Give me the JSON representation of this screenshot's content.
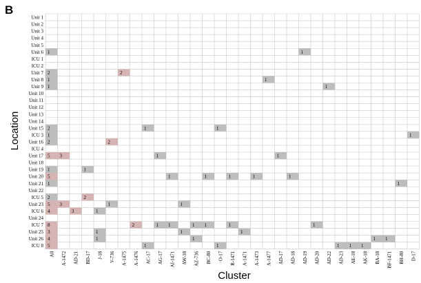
{
  "panel_label": "B",
  "colors": {
    "grid": "#c8c8c8",
    "cell_gray": "#bdbdbd",
    "cell_pink": "#d6b4b4",
    "text": "#000000"
  },
  "chart_data": {
    "type": "heatmap",
    "title": "",
    "xlabel": "Cluster",
    "ylabel": "Location",
    "grid": true,
    "rows": [
      "Unit 1",
      "Unit 2",
      "Unit 3",
      "Unit 4",
      "Unit 5",
      "Unit 6",
      "ICU 1",
      "ICU 2",
      "Unit 7",
      "Unit 8",
      "Unit 9",
      "Unit 10",
      "Unit 11",
      "Unit 12",
      "Unit 13",
      "Unit 14",
      "Unit 15",
      "ICU 3",
      "Unit 16",
      "ICU 4",
      "Unit 17",
      "Unit 18",
      "Unit 19",
      "Unit 20",
      "Unit 21",
      "Unit 22",
      "ICU 5",
      "Unit 23",
      "ICU 6",
      "Unit 24",
      "ICU 7",
      "Unit 25",
      "Unit 26",
      "ICU 8"
    ],
    "columns": [
      "All",
      "A-1472",
      "AD-21",
      "BD-17",
      "J-18",
      "V-736",
      "A-1475",
      "A-1476",
      "AC-17",
      "AG-17",
      "AI-1471",
      "AW-18",
      "AZ-736",
      "BC-80",
      "O-17",
      "R-1471",
      "A-1471",
      "A-1473",
      "A-1477",
      "AD-17",
      "AD-18",
      "AD-19",
      "AD-20",
      "AD-22",
      "AD-23",
      "AE-18",
      "AK-18",
      "BA-18",
      "BF-1471",
      "BH-80",
      "D-17"
    ],
    "cells": [
      {
        "row": "Unit 6",
        "col": "All",
        "value": 1,
        "highlight": "gray"
      },
      {
        "row": "Unit 6",
        "col": "AD-19",
        "value": 1,
        "highlight": "gray"
      },
      {
        "row": "Unit 7",
        "col": "All",
        "value": 2,
        "highlight": "gray"
      },
      {
        "row": "Unit 7",
        "col": "A-1475",
        "value": 2,
        "highlight": "pink"
      },
      {
        "row": "Unit 8",
        "col": "All",
        "value": 1,
        "highlight": "gray"
      },
      {
        "row": "Unit 8",
        "col": "A-1477",
        "value": 1,
        "highlight": "gray"
      },
      {
        "row": "Unit 9",
        "col": "All",
        "value": 1,
        "highlight": "gray"
      },
      {
        "row": "Unit 9",
        "col": "AD-22",
        "value": 1,
        "highlight": "gray"
      },
      {
        "row": "Unit 15",
        "col": "All",
        "value": 2,
        "highlight": "gray"
      },
      {
        "row": "Unit 15",
        "col": "AC-17",
        "value": 1,
        "highlight": "gray"
      },
      {
        "row": "Unit 15",
        "col": "O-17",
        "value": 1,
        "highlight": "gray"
      },
      {
        "row": "ICU 3",
        "col": "All",
        "value": 1,
        "highlight": "gray"
      },
      {
        "row": "ICU 3",
        "col": "D-17",
        "value": 1,
        "highlight": "gray"
      },
      {
        "row": "Unit 16",
        "col": "All",
        "value": 2,
        "highlight": "gray"
      },
      {
        "row": "Unit 16",
        "col": "V-736",
        "value": 2,
        "highlight": "pink"
      },
      {
        "row": "Unit 17",
        "col": "All",
        "value": 5,
        "highlight": "pink"
      },
      {
        "row": "Unit 17",
        "col": "A-1472",
        "value": 3,
        "highlight": "pink"
      },
      {
        "row": "Unit 17",
        "col": "AG-17",
        "value": 1,
        "highlight": "gray"
      },
      {
        "row": "Unit 17",
        "col": "AD-17",
        "value": 1,
        "highlight": "gray"
      },
      {
        "row": "Unit 19",
        "col": "All",
        "value": 1,
        "highlight": "gray"
      },
      {
        "row": "Unit 19",
        "col": "BD-17",
        "value": 1,
        "highlight": "gray"
      },
      {
        "row": "Unit 20",
        "col": "All",
        "value": 5,
        "highlight": "pink"
      },
      {
        "row": "Unit 20",
        "col": "AI-1471",
        "value": 1,
        "highlight": "gray"
      },
      {
        "row": "Unit 20",
        "col": "BC-80",
        "value": 1,
        "highlight": "gray"
      },
      {
        "row": "Unit 20",
        "col": "R-1471",
        "value": 1,
        "highlight": "gray"
      },
      {
        "row": "Unit 20",
        "col": "A-1473",
        "value": 1,
        "highlight": "gray"
      },
      {
        "row": "Unit 20",
        "col": "AD-18",
        "value": 1,
        "highlight": "gray"
      },
      {
        "row": "Unit 21",
        "col": "All",
        "value": 1,
        "highlight": "gray"
      },
      {
        "row": "Unit 21",
        "col": "BH-80",
        "value": 1,
        "highlight": "gray"
      },
      {
        "row": "ICU 5",
        "col": "All",
        "value": 2,
        "highlight": "gray"
      },
      {
        "row": "ICU 5",
        "col": "BD-17",
        "value": 2,
        "highlight": "pink"
      },
      {
        "row": "Unit 23",
        "col": "All",
        "value": 5,
        "highlight": "pink"
      },
      {
        "row": "Unit 23",
        "col": "A-1472",
        "value": 3,
        "highlight": "pink"
      },
      {
        "row": "Unit 23",
        "col": "V-736",
        "value": 1,
        "highlight": "gray"
      },
      {
        "row": "Unit 23",
        "col": "AW-18",
        "value": 1,
        "highlight": "gray"
      },
      {
        "row": "ICU 6",
        "col": "All",
        "value": 4,
        "highlight": "pink"
      },
      {
        "row": "ICU 6",
        "col": "AD-21",
        "value": 3,
        "highlight": "pink"
      },
      {
        "row": "ICU 6",
        "col": "J-18",
        "value": 1,
        "highlight": "gray"
      },
      {
        "row": "ICU 7",
        "col": "All",
        "value": 8,
        "highlight": "pink"
      },
      {
        "row": "ICU 7",
        "col": "A-1476",
        "value": 2,
        "highlight": "pink"
      },
      {
        "row": "ICU 7",
        "col": "AG-17",
        "value": 1,
        "highlight": "gray"
      },
      {
        "row": "ICU 7",
        "col": "AI-1471",
        "value": 1,
        "highlight": "gray"
      },
      {
        "row": "ICU 7",
        "col": "AZ-736",
        "value": 1,
        "highlight": "gray"
      },
      {
        "row": "ICU 7",
        "col": "BC-80",
        "value": 1,
        "highlight": "gray"
      },
      {
        "row": "ICU 7",
        "col": "R-1471",
        "value": 1,
        "highlight": "gray"
      },
      {
        "row": "ICU 7",
        "col": "AD-20",
        "value": 1,
        "highlight": "gray"
      },
      {
        "row": "Unit 25",
        "col": "All",
        "value": 3,
        "highlight": "pink"
      },
      {
        "row": "Unit 25",
        "col": "J-18",
        "value": 1,
        "highlight": "gray"
      },
      {
        "row": "Unit 25",
        "col": "AW-18",
        "value": 1,
        "highlight": "gray"
      },
      {
        "row": "Unit 25",
        "col": "A-1471",
        "value": 1,
        "highlight": "gray"
      },
      {
        "row": "Unit 26",
        "col": "All",
        "value": 4,
        "highlight": "pink"
      },
      {
        "row": "Unit 26",
        "col": "J-18",
        "value": 1,
        "highlight": "gray"
      },
      {
        "row": "Unit 26",
        "col": "AZ-736",
        "value": 1,
        "highlight": "gray"
      },
      {
        "row": "Unit 26",
        "col": "BA-18",
        "value": 1,
        "highlight": "gray"
      },
      {
        "row": "Unit 26",
        "col": "BF-1471",
        "value": 1,
        "highlight": "gray"
      },
      {
        "row": "ICU 8",
        "col": "All",
        "value": 5,
        "highlight": "pink"
      },
      {
        "row": "ICU 8",
        "col": "AC-17",
        "value": 1,
        "highlight": "gray"
      },
      {
        "row": "ICU 8",
        "col": "O-17",
        "value": 1,
        "highlight": "gray"
      },
      {
        "row": "ICU 8",
        "col": "AD-23",
        "value": 1,
        "highlight": "gray"
      },
      {
        "row": "ICU 8",
        "col": "AE-18",
        "value": 1,
        "highlight": "gray"
      },
      {
        "row": "ICU 8",
        "col": "AK-18",
        "value": 1,
        "highlight": "gray"
      }
    ]
  }
}
